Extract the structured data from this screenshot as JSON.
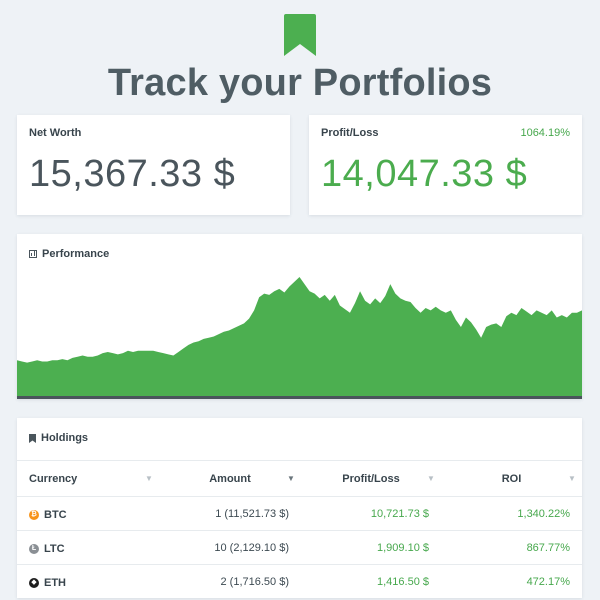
{
  "headline": "Track your Portfolios",
  "net_worth": {
    "title": "Net Worth",
    "value": "15,367.33 $"
  },
  "profit_loss": {
    "title": "Profit/Loss",
    "percent": "1064.19%",
    "value": "14,047.33 $"
  },
  "performance": {
    "title": "Performance",
    "color": "#4caf50",
    "baseline_color": "#4a555c"
  },
  "chart_data": {
    "type": "area",
    "series": [
      {
        "values": [
          30,
          29,
          28,
          29,
          30,
          29,
          29,
          30,
          30,
          31,
          30,
          32,
          33,
          34,
          33,
          33,
          34,
          36,
          37,
          36,
          35,
          36,
          38,
          37,
          38,
          38,
          38,
          38,
          37,
          36,
          35,
          34,
          37,
          40,
          43,
          45,
          46,
          48,
          49,
          50,
          52,
          54,
          55,
          57,
          59,
          61,
          65,
          72,
          83,
          86,
          85,
          88,
          90,
          87,
          92,
          96,
          100,
          94,
          88,
          86,
          82,
          85,
          80,
          85,
          76,
          73,
          70,
          78,
          88,
          80,
          77,
          82,
          78,
          84,
          94,
          86,
          82,
          80,
          79,
          74,
          70,
          74,
          72,
          75,
          72,
          70,
          72,
          64,
          58,
          66,
          62,
          56,
          49,
          58,
          60,
          61,
          58,
          67,
          70,
          68,
          74,
          71,
          68,
          72,
          70,
          68,
          72,
          66,
          68,
          66,
          70,
          70,
          72
        ]
      }
    ],
    "ylim": [
      0,
      100
    ],
    "grid": false,
    "legend": false
  },
  "holdings": {
    "title": "Holdings",
    "columns": [
      "Currency",
      "Amount",
      "Profit/Loss",
      "ROI"
    ],
    "rows": [
      {
        "coin": "BTC",
        "coin_color": "#f7931a",
        "coin_glyph": "₿",
        "amount": "1 (11,521.73 $)",
        "profit": "10,721.73 $",
        "roi": "1,340.22%"
      },
      {
        "coin": "LTC",
        "coin_color": "#8a8f94",
        "coin_glyph": "Ł",
        "amount": "10 (2,129.10 $)",
        "profit": "1,909.10 $",
        "roi": "867.77%"
      },
      {
        "coin": "ETH",
        "coin_color": "#1e1e1e",
        "coin_glyph": "◆",
        "amount": "2 (1,716.50 $)",
        "profit": "1,416.50 $",
        "roi": "472.17%"
      }
    ]
  }
}
